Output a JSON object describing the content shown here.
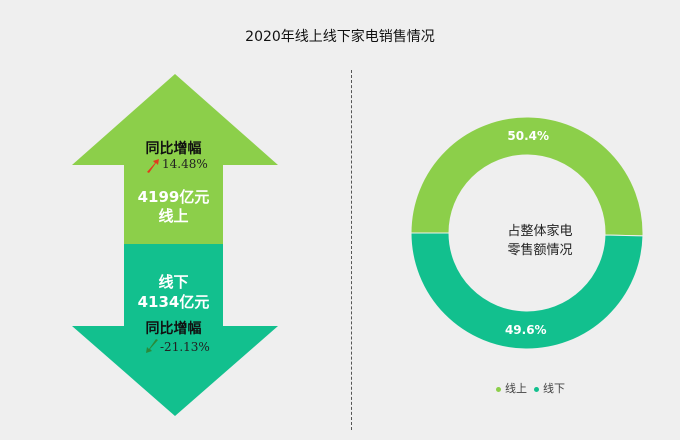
{
  "title": "2020年线上线下家电销售情况",
  "colors": {
    "online": "#8ccf4a",
    "offline": "#12c08e"
  },
  "online": {
    "growth_label": "同比增幅",
    "growth_value": "14.48%",
    "amount": "4199亿元",
    "name": "线上",
    "trend_icon": "up-arrow-icon"
  },
  "offline": {
    "name": "线下",
    "amount": "4134亿元",
    "growth_label": "同比增幅",
    "growth_value": "-21.13%",
    "trend_icon": "down-arrow-icon"
  },
  "donut": {
    "center_line1": "占整体家电",
    "center_line2": "零售额情况"
  },
  "chart_data": {
    "type": "pie",
    "title": "2020年线上线下家电销售情况",
    "categories": [
      "线上",
      "线下"
    ],
    "values": [
      50.4,
      49.6
    ],
    "value_labels": [
      "50.4%",
      "49.6%"
    ],
    "legend": [
      "线上",
      "线下"
    ],
    "legend_position": "bottom"
  }
}
